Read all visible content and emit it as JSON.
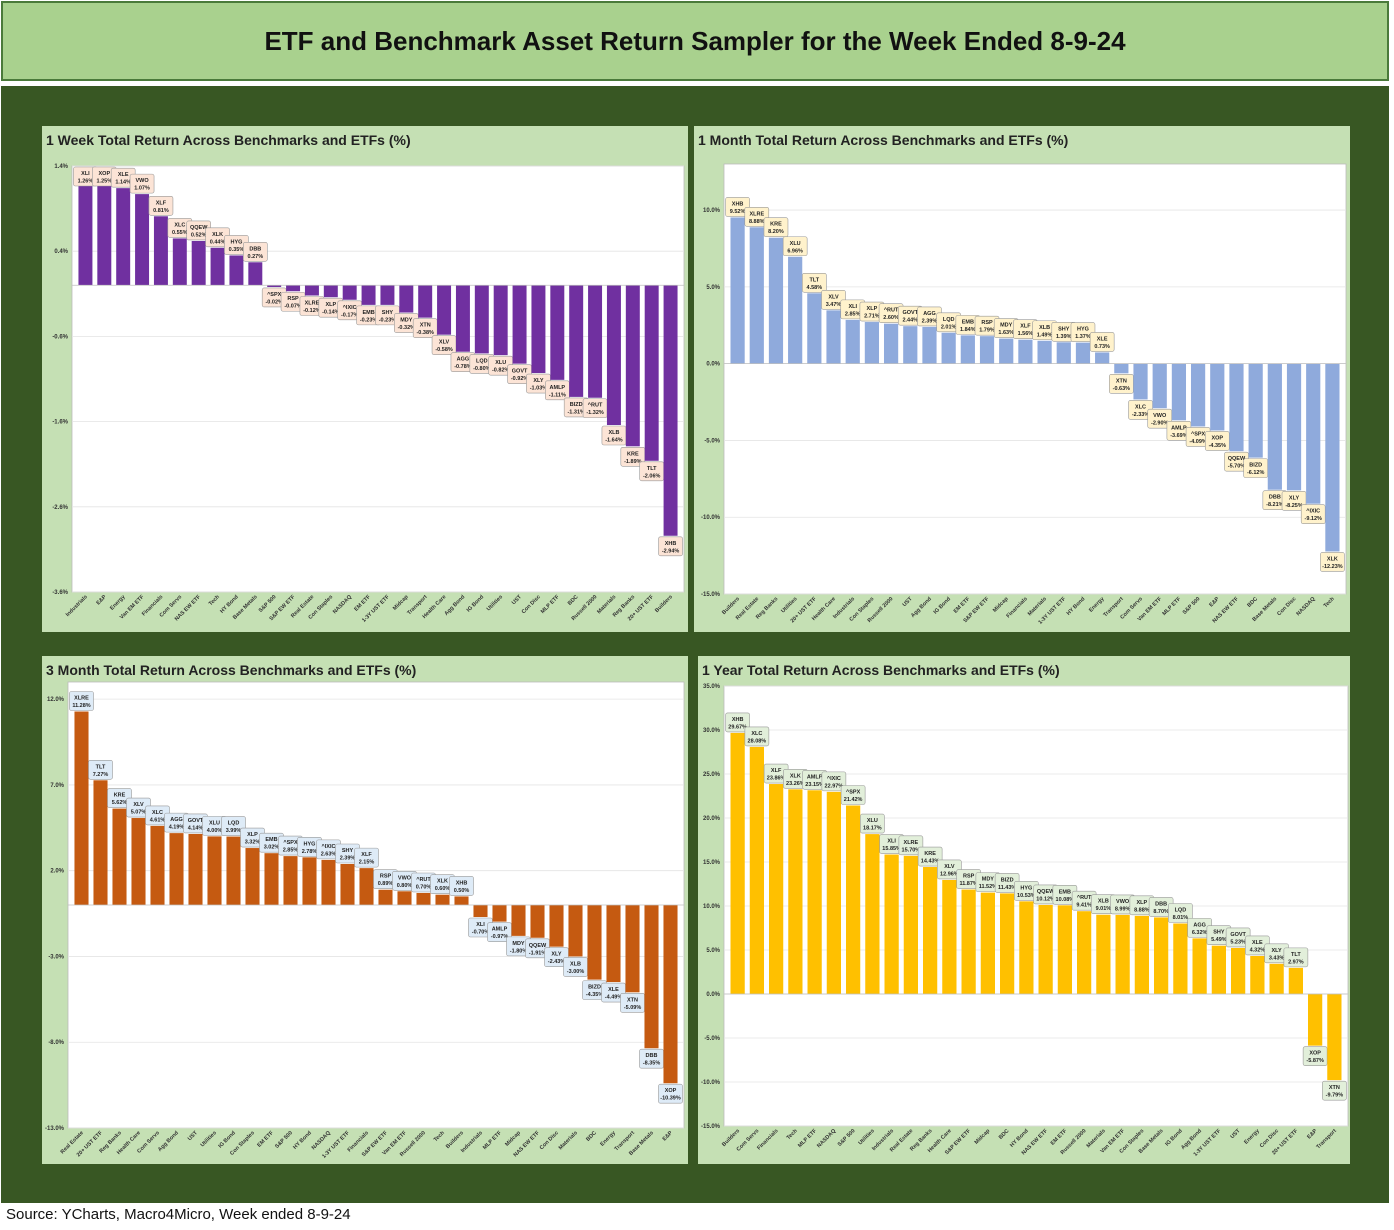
{
  "title": "ETF and Benchmark Asset Return Sampler for the Week Ended 8-9-24",
  "source": "Source: YCharts, Macro4Micro, Week ended 8-9-24",
  "colors": {
    "week": "#7030a0",
    "month": "#8faadc",
    "three_month": "#c55a11",
    "year": "#ffc000"
  },
  "chart_data": [
    {
      "type": "bar",
      "title": "1 Week Total Return Across Benchmarks and ETFs (%)",
      "ylim": [
        -3.6,
        1.4
      ],
      "yticks": [
        1.4,
        0.4,
        -0.6,
        -1.6,
        -2.6,
        -3.6
      ],
      "ytick_labels": [
        "1.4%",
        "0.4%",
        "-0.6%",
        "-1.6%",
        "-2.6%",
        "-3.6%"
      ],
      "categories": [
        "Industrials",
        "E&P",
        "Energy",
        "Van EM ETF",
        "Financials",
        "Com Servs",
        "NAS EW ETF",
        "Tech",
        "HY Bond",
        "Base Metals",
        "S&P 500",
        "S&P EW ETF",
        "Real Estate",
        "Con Staples",
        "NASDAQ",
        "EM ETF",
        "1-3Y UST ETF",
        "Midcap",
        "Transport",
        "Health Care",
        "Agg Bond",
        "IG Bond",
        "Utilities",
        "UST",
        "Con Disc",
        "MLP ETF",
        "BDC",
        "Russell 2000",
        "Materials",
        "Reg Banks",
        "20+ UST ETF",
        "Builders"
      ],
      "tickers": [
        "XLI",
        "XOP",
        "XLE",
        "VWO",
        "XLF",
        "XLC",
        "QQEW",
        "XLK",
        "HYG",
        "DBB",
        "^SPX",
        "RSP",
        "XLRE",
        "XLP",
        "^IXIC",
        "EMB",
        "SHY",
        "MDY",
        "XTN",
        "XLV",
        "AGG",
        "LQD",
        "XLU",
        "GOVT",
        "XLY",
        "AMLP",
        "BIZD",
        "^RUT",
        "XLB",
        "KRE",
        "TLT",
        "XHB"
      ],
      "values": [
        1.26,
        1.25,
        1.14,
        1.07,
        0.81,
        0.55,
        0.52,
        0.44,
        0.35,
        0.27,
        -0.02,
        -0.07,
        -0.12,
        -0.14,
        -0.17,
        -0.23,
        -0.23,
        -0.32,
        -0.38,
        -0.58,
        -0.78,
        -0.8,
        -0.82,
        -0.92,
        -1.03,
        -1.11,
        -1.31,
        -1.32,
        -1.64,
        -1.89,
        -2.06,
        -2.94
      ],
      "value_labels": [
        "1.26%",
        "1.25%",
        "1.14%",
        "1.07%",
        "0.81%",
        "0.55%",
        "0.52%",
        "0.44%",
        "0.35%",
        "0.27%",
        "-0.02%",
        "-0.07%",
        "-0.12%",
        "-0.14%",
        "-0.17%",
        "-0.23%",
        "-0.23%",
        "-0.32%",
        "-0.38%",
        "-0.58%",
        "-0.78%",
        "-0.80%",
        "-0.82%",
        "-0.92%",
        "-1.03%",
        "-1.11%",
        "-1.31%",
        "-1.32%",
        "-1.64%",
        "-1.89%",
        "-2.06%",
        "-2.94%"
      ],
      "bar_color": "#7030a0",
      "label_fill": "#fce4d6"
    },
    {
      "type": "bar",
      "title": "1 Month Total Return Across Benchmarks and ETFs (%)",
      "ylim": [
        -15,
        13
      ],
      "yticks": [
        10,
        5,
        0,
        -5,
        -10,
        -15
      ],
      "ytick_labels": [
        "10.0%",
        "5.0%",
        "0.0%",
        "-5.0%",
        "-10.0%",
        "-15.0%"
      ],
      "categories": [
        "Builders",
        "Real Estate",
        "Reg Banks",
        "Utilities",
        "20+ UST ETF",
        "Health Care",
        "Industrials",
        "Con Staples",
        "Russell 2000",
        "UST",
        "Agg Bond",
        "IG Bond",
        "EM ETF",
        "S&P EW ETF",
        "Midcap",
        "Financials",
        "Materials",
        "1-3Y UST ETF",
        "HY Bond",
        "Energy",
        "Transport",
        "Com Servs",
        "Van EM ETF",
        "MLP ETF",
        "S&P 500",
        "E&P",
        "NAS EW ETF",
        "BDC",
        "Base Metals",
        "Con Disc",
        "NASDAQ",
        "Tech"
      ],
      "tickers": [
        "XHB",
        "XLRE",
        "KRE",
        "XLU",
        "TLT",
        "XLV",
        "XLI",
        "XLP",
        "^RUT",
        "GOVT",
        "AGG",
        "LQD",
        "EMB",
        "RSP",
        "MDY",
        "XLF",
        "XLB",
        "SHY",
        "HYG",
        "XLE",
        "XTN",
        "XLC",
        "VWO",
        "AMLP",
        "^SPX",
        "XOP",
        "QQEW",
        "BIZD",
        "DBB",
        "XLY",
        "^IXIC",
        "XLK"
      ],
      "values": [
        9.52,
        8.88,
        8.2,
        6.96,
        4.58,
        3.47,
        2.85,
        2.71,
        2.6,
        2.44,
        2.39,
        2.01,
        1.84,
        1.79,
        1.63,
        1.56,
        1.49,
        1.39,
        1.37,
        0.73,
        -0.63,
        -2.33,
        -2.9,
        -3.69,
        -4.09,
        -4.35,
        -5.7,
        -6.12,
        -8.21,
        -8.25,
        -9.12,
        -12.23
      ],
      "value_labels": [
        "9.52%",
        "8.88%",
        "8.20%",
        "6.96%",
        "4.58%",
        "3.47%",
        "2.85%",
        "2.71%",
        "2.60%",
        "2.44%",
        "2.39%",
        "2.01%",
        "1.84%",
        "1.79%",
        "1.63%",
        "1.56%",
        "1.49%",
        "1.39%",
        "1.37%",
        "0.73%",
        "-0.63%",
        "-2.33%",
        "-2.90%",
        "-3.69%",
        "-4.09%",
        "-4.35%",
        "-5.70%",
        "-6.12%",
        "-8.21%",
        "-8.25%",
        "-9.12%",
        "-12.23%"
      ],
      "bar_color": "#8faadc",
      "label_fill": "#fff2cc"
    },
    {
      "type": "bar",
      "title": "3 Month Total Return Across Benchmarks and ETFs (%)",
      "ylim": [
        -13,
        13
      ],
      "yticks": [
        12,
        7,
        2,
        -3,
        -8,
        -13
      ],
      "ytick_labels": [
        "12.0%",
        "7.0%",
        "2.0%",
        "-3.0%",
        "-8.0%",
        "-13.0%"
      ],
      "categories": [
        "Real Estate",
        "20+ UST ETF",
        "Reg Banks",
        "Health Care",
        "Com Servs",
        "Agg Bond",
        "UST",
        "Utilities",
        "IG Bond",
        "Con Staples",
        "EM ETF",
        "S&P 500",
        "HY Bond",
        "NASDAQ",
        "1-3Y UST ETF",
        "Financials",
        "S&P EW ETF",
        "Van EM ETF",
        "Russell 2000",
        "Tech",
        "Builders",
        "Industrials",
        "MLP ETF",
        "Midcap",
        "NAS EW ETF",
        "Con Disc",
        "Materials",
        "BDC",
        "Energy",
        "Transport",
        "Base Metals",
        "E&P"
      ],
      "tickers": [
        "XLRE",
        "TLT",
        "KRE",
        "XLV",
        "XLC",
        "AGG",
        "GOVT",
        "XLU",
        "LQD",
        "XLP",
        "EMB",
        "^SPX",
        "HYG",
        "^IXIC",
        "SHY",
        "XLF",
        "RSP",
        "VWO",
        "^RUT",
        "XLK",
        "XHB",
        "XLI",
        "AMLP",
        "MDY",
        "QQEW",
        "XLY",
        "XLB",
        "BIZD",
        "XLE",
        "XTN",
        "DBB",
        "XOP"
      ],
      "values": [
        11.28,
        7.27,
        5.62,
        5.07,
        4.61,
        4.19,
        4.14,
        4.0,
        3.99,
        3.32,
        3.02,
        2.85,
        2.78,
        2.63,
        2.39,
        2.15,
        0.89,
        0.8,
        0.7,
        0.6,
        0.5,
        -0.7,
        -0.97,
        -1.8,
        -1.91,
        -2.43,
        -3.0,
        -4.35,
        -4.49,
        -5.09,
        -8.35,
        -10.39
      ],
      "value_labels": [
        "11.28%",
        "7.27%",
        "5.62%",
        "5.07%",
        "4.61%",
        "4.19%",
        "4.14%",
        "4.00%",
        "3.99%",
        "3.32%",
        "3.02%",
        "2.85%",
        "2.78%",
        "2.63%",
        "2.39%",
        "2.15%",
        "0.89%",
        "0.80%",
        "0.70%",
        "0.60%",
        "0.50%",
        "-0.70%",
        "-0.97%",
        "-1.80%",
        "-1.91%",
        "-2.43%",
        "-3.00%",
        "-4.35%",
        "-4.49%",
        "-5.09%",
        "-8.35%",
        "-10.39%"
      ],
      "bar_color": "#c55a11",
      "label_fill": "#deebf7"
    },
    {
      "type": "bar",
      "title": "1 Year Total Return Across Benchmarks and ETFs (%)",
      "ylim": [
        -15,
        35
      ],
      "yticks": [
        35,
        30,
        25,
        20,
        15,
        10,
        5,
        0,
        -5,
        -10,
        -15
      ],
      "ytick_labels": [
        "35.0%",
        "30.0%",
        "25.0%",
        "20.0%",
        "15.0%",
        "10.0%",
        "5.0%",
        "0.0%",
        "-5.0%",
        "-10.0%",
        "-15.0%"
      ],
      "categories": [
        "Builders",
        "Com Servs",
        "Financials",
        "Tech",
        "MLP ETF",
        "NASDAQ",
        "S&P 500",
        "Utilities",
        "Industrials",
        "Real Estate",
        "Reg Banks",
        "Health Care",
        "S&P EW ETF",
        "Midcap",
        "BDC",
        "HY Bond",
        "NAS EW ETF",
        "EM ETF",
        "Russell 2000",
        "Materials",
        "Van EM ETF",
        "Con Staples",
        "Base Metals",
        "IG Bond",
        "Agg Bond",
        "1-3Y UST ETF",
        "UST",
        "Energy",
        "Con Disc",
        "20+ UST ETF",
        "E&P",
        "Transport"
      ],
      "tickers": [
        "XHB",
        "XLC",
        "XLF",
        "XLK",
        "AMLP",
        "^IXIC",
        "^SPX",
        "XLU",
        "XLI",
        "XLRE",
        "KRE",
        "XLV",
        "RSP",
        "MDY",
        "BIZD",
        "HYG",
        "QQEW",
        "EMB",
        "^RUT",
        "XLB",
        "VWO",
        "XLP",
        "DBB",
        "LQD",
        "AGG",
        "SHY",
        "GOVT",
        "XLE",
        "XLY",
        "TLT",
        "XOP",
        "XTN"
      ],
      "values": [
        29.67,
        28.08,
        23.86,
        23.26,
        23.15,
        22.97,
        21.42,
        18.17,
        15.85,
        15.7,
        14.43,
        12.96,
        11.87,
        11.52,
        11.43,
        10.53,
        10.12,
        10.08,
        9.41,
        9.01,
        8.99,
        8.88,
        8.7,
        8.01,
        6.32,
        5.49,
        5.23,
        4.32,
        3.43,
        2.97,
        -5.87,
        -9.79
      ],
      "value_labels": [
        "29.67%",
        "28.08%",
        "23.86%",
        "23.26%",
        "23.15%",
        "22.97%",
        "21.42%",
        "18.17%",
        "15.85%",
        "15.70%",
        "14.43%",
        "12.96%",
        "11.87%",
        "11.52%",
        "11.43%",
        "10.53%",
        "10.12%",
        "10.08%",
        "9.41%",
        "9.01%",
        "8.99%",
        "8.88%",
        "8.70%",
        "8.01%",
        "6.32%",
        "5.49%",
        "5.23%",
        "4.32%",
        "3.43%",
        "2.97%",
        "-5.87%",
        "-9.79%"
      ],
      "bar_color": "#ffc000",
      "label_fill": "#e2efda"
    }
  ]
}
